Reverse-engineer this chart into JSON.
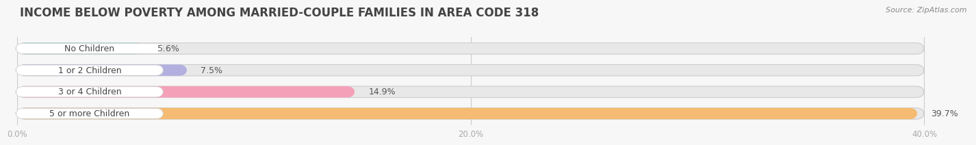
{
  "title": "INCOME BELOW POVERTY AMONG MARRIED-COUPLE FAMILIES IN AREA CODE 318",
  "source": "Source: ZipAtlas.com",
  "categories": [
    "No Children",
    "1 or 2 Children",
    "3 or 4 Children",
    "5 or more Children"
  ],
  "values": [
    5.6,
    7.5,
    14.9,
    39.7
  ],
  "bar_colors": [
    "#72ceca",
    "#b3b0e0",
    "#f4a0b8",
    "#f5bb72"
  ],
  "xlim": [
    0,
    42
  ],
  "bar_xlim": 40,
  "xticks": [
    0.0,
    20.0,
    40.0
  ],
  "xtick_labels": [
    "0.0%",
    "20.0%",
    "40.0%"
  ],
  "background_color": "#f7f7f7",
  "bar_background_color": "#e8e8e8",
  "title_fontsize": 12,
  "label_fontsize": 9,
  "value_fontsize": 9,
  "bar_height": 0.52,
  "label_color": "#444444",
  "value_color": "#555555",
  "title_color": "#444444",
  "source_color": "#888888"
}
